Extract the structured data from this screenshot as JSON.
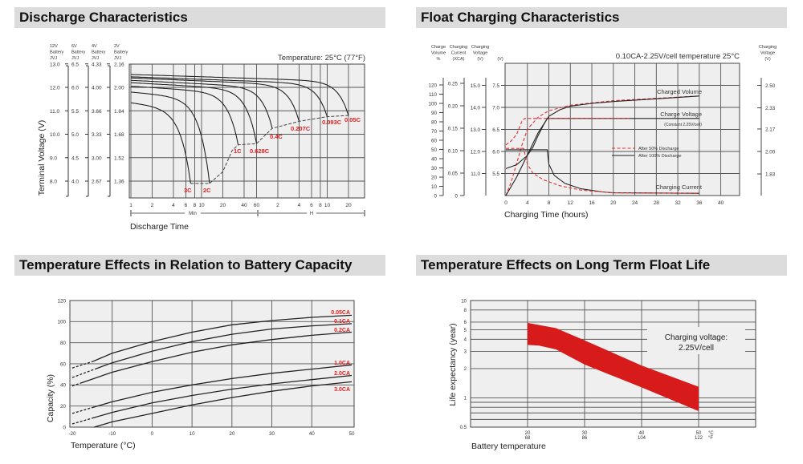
{
  "chart_data": [
    {
      "type": "line",
      "title": "Discharge Characteristics",
      "annotation": "Temperature: 25°C (77°F)",
      "xlabel": "Discharge Time",
      "ylabel": "Terminal Voltage (V)",
      "x_scale": "log",
      "x_unit": "min",
      "xlim": [
        1,
        2040
      ],
      "ylim_12v": [
        7.28,
        13.0
      ],
      "grid": true,
      "x_ticks": [
        {
          "label": "1",
          "min": 1
        },
        {
          "label": "2",
          "min": 2
        },
        {
          "label": "4",
          "min": 4
        },
        {
          "label": "6",
          "min": 6
        },
        {
          "label": "8",
          "min": 8
        },
        {
          "label": "10",
          "min": 10
        },
        {
          "label": "20",
          "min": 20
        },
        {
          "label": "40",
          "min": 40
        },
        {
          "label": "60",
          "min": 60
        },
        {
          "label": "2",
          "min": 120
        },
        {
          "label": "4",
          "min": 240
        },
        {
          "label": "6",
          "min": 360
        },
        {
          "label": "8",
          "min": 480
        },
        {
          "label": "10",
          "min": 600
        },
        {
          "label": "20",
          "min": 1200
        }
      ],
      "x_unit_ranges": [
        {
          "label": "Min"
        },
        {
          "label": "H"
        }
      ],
      "y_axes": [
        {
          "header": [
            "12V",
            "Battery",
            "JVJ"
          ],
          "ticks": [
            "13.0",
            "12.0",
            "11.0",
            "10.0",
            "9.0",
            "8.0"
          ]
        },
        {
          "header": [
            "6V",
            "Battery",
            "JVJ"
          ],
          "ticks": [
            "6.5",
            "6.0",
            "5.5",
            "5.0",
            "4.5",
            "4.0"
          ]
        },
        {
          "header": [
            "4V",
            "Battery",
            "JVJ"
          ],
          "ticks": [
            "4.33",
            "4.00",
            "3.66",
            "3.33",
            "3.00",
            "2.67"
          ]
        },
        {
          "header": [
            "2V",
            "Battery",
            "JVJ"
          ],
          "ticks": [
            "2.16",
            "2.00",
            "1.84",
            "1.68",
            "1.52",
            "1.36"
          ]
        }
      ],
      "y_tick_values_12v": [
        13,
        12,
        11,
        10,
        9,
        8
      ],
      "series": [
        {
          "name": "3C",
          "start_v": 11.35,
          "end_min": 7,
          "end_v": 7.9
        },
        {
          "name": "2C",
          "start_v": 11.8,
          "end_min": 13,
          "end_v": 7.9
        },
        {
          "name": "1C",
          "start_v": 12.05,
          "end_min": 33,
          "end_v": 9.55
        },
        {
          "name": "0.628C",
          "start_v": 12.2,
          "end_min": 60,
          "end_v": 9.6
        },
        {
          "name": "0.4C",
          "start_v": 12.3,
          "end_min": 100,
          "end_v": 10.25
        },
        {
          "name": "0.207C",
          "start_v": 12.4,
          "end_min": 240,
          "end_v": 10.55
        },
        {
          "name": "0.093C",
          "start_v": 12.45,
          "end_min": 600,
          "end_v": 10.75
        },
        {
          "name": "0.05C",
          "start_v": 12.55,
          "end_min": 1200,
          "end_v": 10.8
        }
      ],
      "cutoff_curve": [
        [
          7,
          7.9
        ],
        [
          13,
          7.9
        ],
        [
          20,
          8.4
        ],
        [
          27,
          9.3
        ],
        [
          33,
          9.55
        ],
        [
          60,
          9.6
        ],
        [
          100,
          10.25
        ],
        [
          240,
          10.55
        ],
        [
          600,
          10.75
        ],
        [
          1200,
          10.8
        ]
      ],
      "label_color": "#e02020"
    },
    {
      "type": "line",
      "title": "Float Charging Characteristics",
      "annotation": "0.10CA-2.25V/cell  temperature 25°C",
      "xlabel": "Charging Time (hours)",
      "xlim": [
        0,
        43.5
      ],
      "grid": true,
      "x_ticks": [
        "0",
        "4",
        "8",
        "12",
        "16",
        "20",
        "24",
        "28",
        "32",
        "36",
        "40"
      ],
      "y_axes": {
        "volume": {
          "header": [
            "Charge",
            "Volume",
            "%"
          ],
          "ticks": [
            "0",
            "10",
            "20",
            "30",
            "40",
            "50",
            "60",
            "70",
            "80",
            "90",
            "100",
            "110",
            "120"
          ],
          "range": [
            0,
            120
          ]
        },
        "current": {
          "header": [
            "Charging",
            "Current",
            "(XCA)"
          ],
          "ticks": [
            "0",
            "0.05",
            "0.10",
            "0.15",
            "0.20",
            "0.25"
          ],
          "range": [
            0,
            0.25
          ]
        },
        "voltage_12v": {
          "header": [
            "Charging",
            "Voltage",
            "(V)"
          ],
          "ticks": [
            "11.0",
            "12.0",
            "13.0",
            "14.0",
            "15.0"
          ]
        },
        "voltage_6v": {
          "header": [
            "(V)"
          ],
          "ticks": [
            "5.5",
            "6.0",
            "6.5",
            "7.0",
            "7.5"
          ],
          "range": [
            5.0,
            8.0
          ]
        },
        "voltage_cell": {
          "header": [
            "Charging",
            "Voltage",
            "(V)"
          ],
          "ticks": [
            "1.83",
            "2.00",
            "2.17",
            "2.33",
            "2.50"
          ]
        }
      },
      "series": [
        {
          "name": "After  50% Discharge",
          "quantity": "Charged Volume",
          "axis": "volume",
          "style": "dashed",
          "color": "#e03030",
          "points": [
            [
              0,
              0
            ],
            [
              1,
              15
            ],
            [
              2,
              35
            ],
            [
              3,
              55
            ],
            [
              4,
              72
            ],
            [
              6,
              85
            ],
            [
              8,
              92
            ],
            [
              12,
              98
            ],
            [
              20,
              103
            ],
            [
              36,
              108
            ]
          ]
        },
        {
          "name": "After 100% Discharge",
          "quantity": "Charged Volume",
          "axis": "volume",
          "style": "solid",
          "color": "#222222",
          "points": [
            [
              0,
              0
            ],
            [
              2,
              20
            ],
            [
              4,
              44
            ],
            [
              6,
              68
            ],
            [
              8,
              86
            ],
            [
              10,
              93
            ],
            [
              12,
              97
            ],
            [
              16,
              100
            ],
            [
              20,
              102
            ],
            [
              28,
              105
            ],
            [
              36,
              108
            ]
          ]
        },
        {
          "name": "After 100% Discharge",
          "quantity": "Charge Voltage",
          "axis": "voltage_cell",
          "style": "solid",
          "color": "#222222",
          "points": [
            [
              0,
              1.87
            ],
            [
              2,
              1.9
            ],
            [
              4,
              1.97
            ],
            [
              5,
              2.03
            ],
            [
              6,
              2.12
            ],
            [
              7,
              2.2
            ],
            [
              7.7,
              2.25
            ],
            [
              36,
              2.25
            ]
          ]
        },
        {
          "name": "After  50% Discharge",
          "quantity": "Charge Voltage",
          "axis": "voltage_cell",
          "style": "dashed",
          "color": "#e03030",
          "points": [
            [
              0,
              2.05
            ],
            [
              1,
              2.08
            ],
            [
              2,
              2.13
            ],
            [
              3,
              2.23
            ],
            [
              3.5,
              2.25
            ],
            [
              23,
              2.25
            ]
          ]
        },
        {
          "name": "After 100% Discharge",
          "quantity": "Charging Current",
          "axis": "current",
          "style": "solid",
          "color": "#222222",
          "points": [
            [
              0,
              0.102
            ],
            [
              7.7,
              0.102
            ],
            [
              8,
              0.07
            ],
            [
              9,
              0.045
            ],
            [
              11,
              0.027
            ],
            [
              14,
              0.015
            ],
            [
              18,
              0.008
            ],
            [
              20,
              0.006
            ],
            [
              36,
              0.005
            ]
          ]
        },
        {
          "name": "After  50% Discharge",
          "quantity": "Charging Current",
          "axis": "current",
          "style": "dashed",
          "color": "#e03030",
          "points": [
            [
              0,
              0.105
            ],
            [
              3.3,
              0.105
            ],
            [
              4,
              0.07
            ],
            [
              5,
              0.05
            ],
            [
              7,
              0.035
            ],
            [
              10,
              0.022
            ],
            [
              14,
              0.012
            ],
            [
              20,
              0.006
            ],
            [
              36,
              0.005
            ]
          ]
        }
      ],
      "legend": [
        {
          "label": "After  50% Discharge",
          "style": "dashed",
          "color": "#e03030"
        },
        {
          "label": "After 100% Discharge",
          "style": "solid",
          "color": "#222222"
        }
      ],
      "curve_labels": {
        "volume": "Charged Volume",
        "voltage": "Charge Voltage",
        "voltage_note": "(Constant 2.25V/cell)",
        "current": "Charging Current"
      }
    },
    {
      "type": "line",
      "title": "Temperature Effects in Relation to Battery Capacity",
      "xlabel": "Temperature (°C)",
      "ylabel": "Capacity (%)",
      "xlim": [
        -20,
        50
      ],
      "ylim": [
        0,
        120
      ],
      "grid": true,
      "x_ticks": [
        "-20",
        "-10",
        "0",
        "10",
        "20",
        "30",
        "40",
        "50"
      ],
      "y_ticks": [
        "0",
        "20",
        "40",
        "60",
        "80",
        "100",
        "120"
      ],
      "series": [
        {
          "name": "0.05CA",
          "dashed_below": -15,
          "points": [
            [
              -20,
              56
            ],
            [
              -15,
              62
            ],
            [
              -10,
              70
            ],
            [
              0,
              81
            ],
            [
              10,
              90
            ],
            [
              20,
              97
            ],
            [
              30,
              101
            ],
            [
              40,
              104
            ],
            [
              50,
              106
            ]
          ]
        },
        {
          "name": "0.1CA",
          "dashed_below": -14,
          "points": [
            [
              -20,
              47
            ],
            [
              -10,
              61
            ],
            [
              0,
              72
            ],
            [
              10,
              81
            ],
            [
              20,
              88
            ],
            [
              30,
              93
            ],
            [
              40,
              96
            ],
            [
              50,
              98
            ]
          ]
        },
        {
          "name": "0.2CA",
          "dashed_below": -18,
          "points": [
            [
              -20,
              39
            ],
            [
              -10,
              52
            ],
            [
              0,
              62
            ],
            [
              10,
              71
            ],
            [
              20,
              78
            ],
            [
              30,
              83
            ],
            [
              40,
              87
            ],
            [
              50,
              90
            ]
          ]
        },
        {
          "name": "1.0CA",
          "dashed_below": -15,
          "points": [
            [
              -20,
              13
            ],
            [
              -10,
              24
            ],
            [
              0,
              33
            ],
            [
              10,
              40
            ],
            [
              20,
              46
            ],
            [
              30,
              51
            ],
            [
              40,
              55
            ],
            [
              50,
              59
            ]
          ]
        },
        {
          "name": "2.0CA",
          "dashed_below": -15,
          "points": [
            [
              -20,
              3
            ],
            [
              -10,
              14
            ],
            [
              0,
              23
            ],
            [
              10,
              30
            ],
            [
              20,
              36
            ],
            [
              30,
              41
            ],
            [
              40,
              45
            ],
            [
              50,
              49
            ]
          ]
        },
        {
          "name": "3.0CA",
          "dashed_below": -20,
          "points": [
            [
              -14.5,
              0
            ],
            [
              -10,
              5
            ],
            [
              0,
              13
            ],
            [
              10,
              21
            ],
            [
              20,
              28
            ],
            [
              30,
              34
            ],
            [
              40,
              39
            ],
            [
              50,
              43
            ]
          ]
        }
      ],
      "label_color": "#e02020"
    },
    {
      "type": "area",
      "title": "Temperature Effects on Long Term Float Life",
      "xlabel": "Battery temperature",
      "ylabel": "Life expectancy (year)",
      "y_scale": "log",
      "xlim": [
        10,
        60
      ],
      "ylim": [
        0.5,
        10
      ],
      "grid": true,
      "x_ticks": [
        {
          "c": "20",
          "f": "68"
        },
        {
          "c": "30",
          "f": "86"
        },
        {
          "c": "40",
          "f": "104"
        },
        {
          "c": "50",
          "f": "122"
        }
      ],
      "x_units": {
        "c": "°C",
        "f": "°F"
      },
      "y_ticks": [
        "10",
        "8",
        "6",
        "5",
        "4",
        "3",
        "2",
        "1",
        "0.5"
      ],
      "y_gridlines": [
        8,
        6,
        5,
        4,
        3,
        2,
        1,
        0.9,
        0.8,
        0.7,
        0.6
      ],
      "band": {
        "upper": [
          [
            20,
            5.9
          ],
          [
            25,
            5.2
          ],
          [
            30,
            3.9
          ],
          [
            40,
            2.15
          ],
          [
            50,
            1.3
          ]
        ],
        "lower": [
          [
            20,
            3.5
          ],
          [
            22,
            3.45
          ],
          [
            25,
            3.15
          ],
          [
            30,
            2.2
          ],
          [
            40,
            1.28
          ],
          [
            50,
            0.73
          ]
        ],
        "color": "#d71a1a"
      },
      "annotation": [
        "Charging voltage:",
        "2.25V/cell"
      ]
    }
  ]
}
